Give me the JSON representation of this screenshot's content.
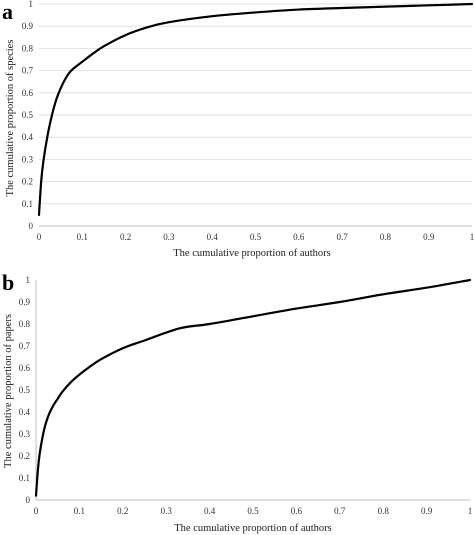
{
  "chart_data": [
    {
      "type": "line",
      "panel_label": "a",
      "xlabel": "The cumulative proportion of authors",
      "ylabel": "The cumulative proportion of species",
      "xlim": [
        0,
        1
      ],
      "ylim": [
        0,
        1
      ],
      "x_ticks": [
        "0",
        "0.1",
        "0.2",
        "0.3",
        "0.4",
        "0.5",
        "0.6",
        "0.7",
        "0.8",
        "0.9",
        "1"
      ],
      "y_ticks": [
        "0",
        "0.1",
        "0.2",
        "0.3",
        "0.4",
        "0.5",
        "0.6",
        "0.7",
        "0.8",
        "0.9",
        "1"
      ],
      "grid": true,
      "line_color": "#000000",
      "grid_color": "#d9d9d9",
      "series": [
        {
          "x": [
            0,
            0.005,
            0.01,
            0.02,
            0.03,
            0.04,
            0.05,
            0.06,
            0.07,
            0.08,
            0.1,
            0.12,
            0.15,
            0.2,
            0.25,
            0.3,
            0.4,
            0.5,
            0.6,
            0.7,
            0.8,
            0.9,
            1.0
          ],
          "y": [
            0.05,
            0.2,
            0.29,
            0.41,
            0.5,
            0.57,
            0.62,
            0.66,
            0.69,
            0.71,
            0.74,
            0.77,
            0.81,
            0.86,
            0.895,
            0.918,
            0.945,
            0.962,
            0.975,
            0.982,
            0.988,
            0.994,
            1.0
          ]
        }
      ]
    },
    {
      "type": "line",
      "panel_label": "b",
      "xlabel": "The cumulative proportion of authors",
      "ylabel": "The cumulative proportion of papers",
      "xlim": [
        0,
        1
      ],
      "ylim": [
        0,
        1
      ],
      "x_ticks": [
        "0",
        "0.1",
        "0.2",
        "0.3",
        "0.4",
        "0.5",
        "0.6",
        "0.7",
        "0.8",
        "0.9",
        "1"
      ],
      "y_ticks": [
        "0",
        "0.1",
        "0.2",
        "0.3",
        "0.4",
        "0.5",
        "0.6",
        "0.7",
        "0.8",
        "0.9",
        "1"
      ],
      "grid": false,
      "line_color": "#000000",
      "series": [
        {
          "x": [
            0,
            0.005,
            0.01,
            0.02,
            0.03,
            0.04,
            0.05,
            0.06,
            0.08,
            0.1,
            0.12,
            0.15,
            0.2,
            0.25,
            0.33,
            0.4,
            0.5,
            0.6,
            0.7,
            0.8,
            0.9,
            1.0
          ],
          "y": [
            0.02,
            0.15,
            0.23,
            0.33,
            0.39,
            0.43,
            0.46,
            0.49,
            0.535,
            0.57,
            0.6,
            0.64,
            0.69,
            0.725,
            0.78,
            0.8,
            0.835,
            0.87,
            0.9,
            0.935,
            0.965,
            1.0
          ]
        }
      ]
    }
  ]
}
